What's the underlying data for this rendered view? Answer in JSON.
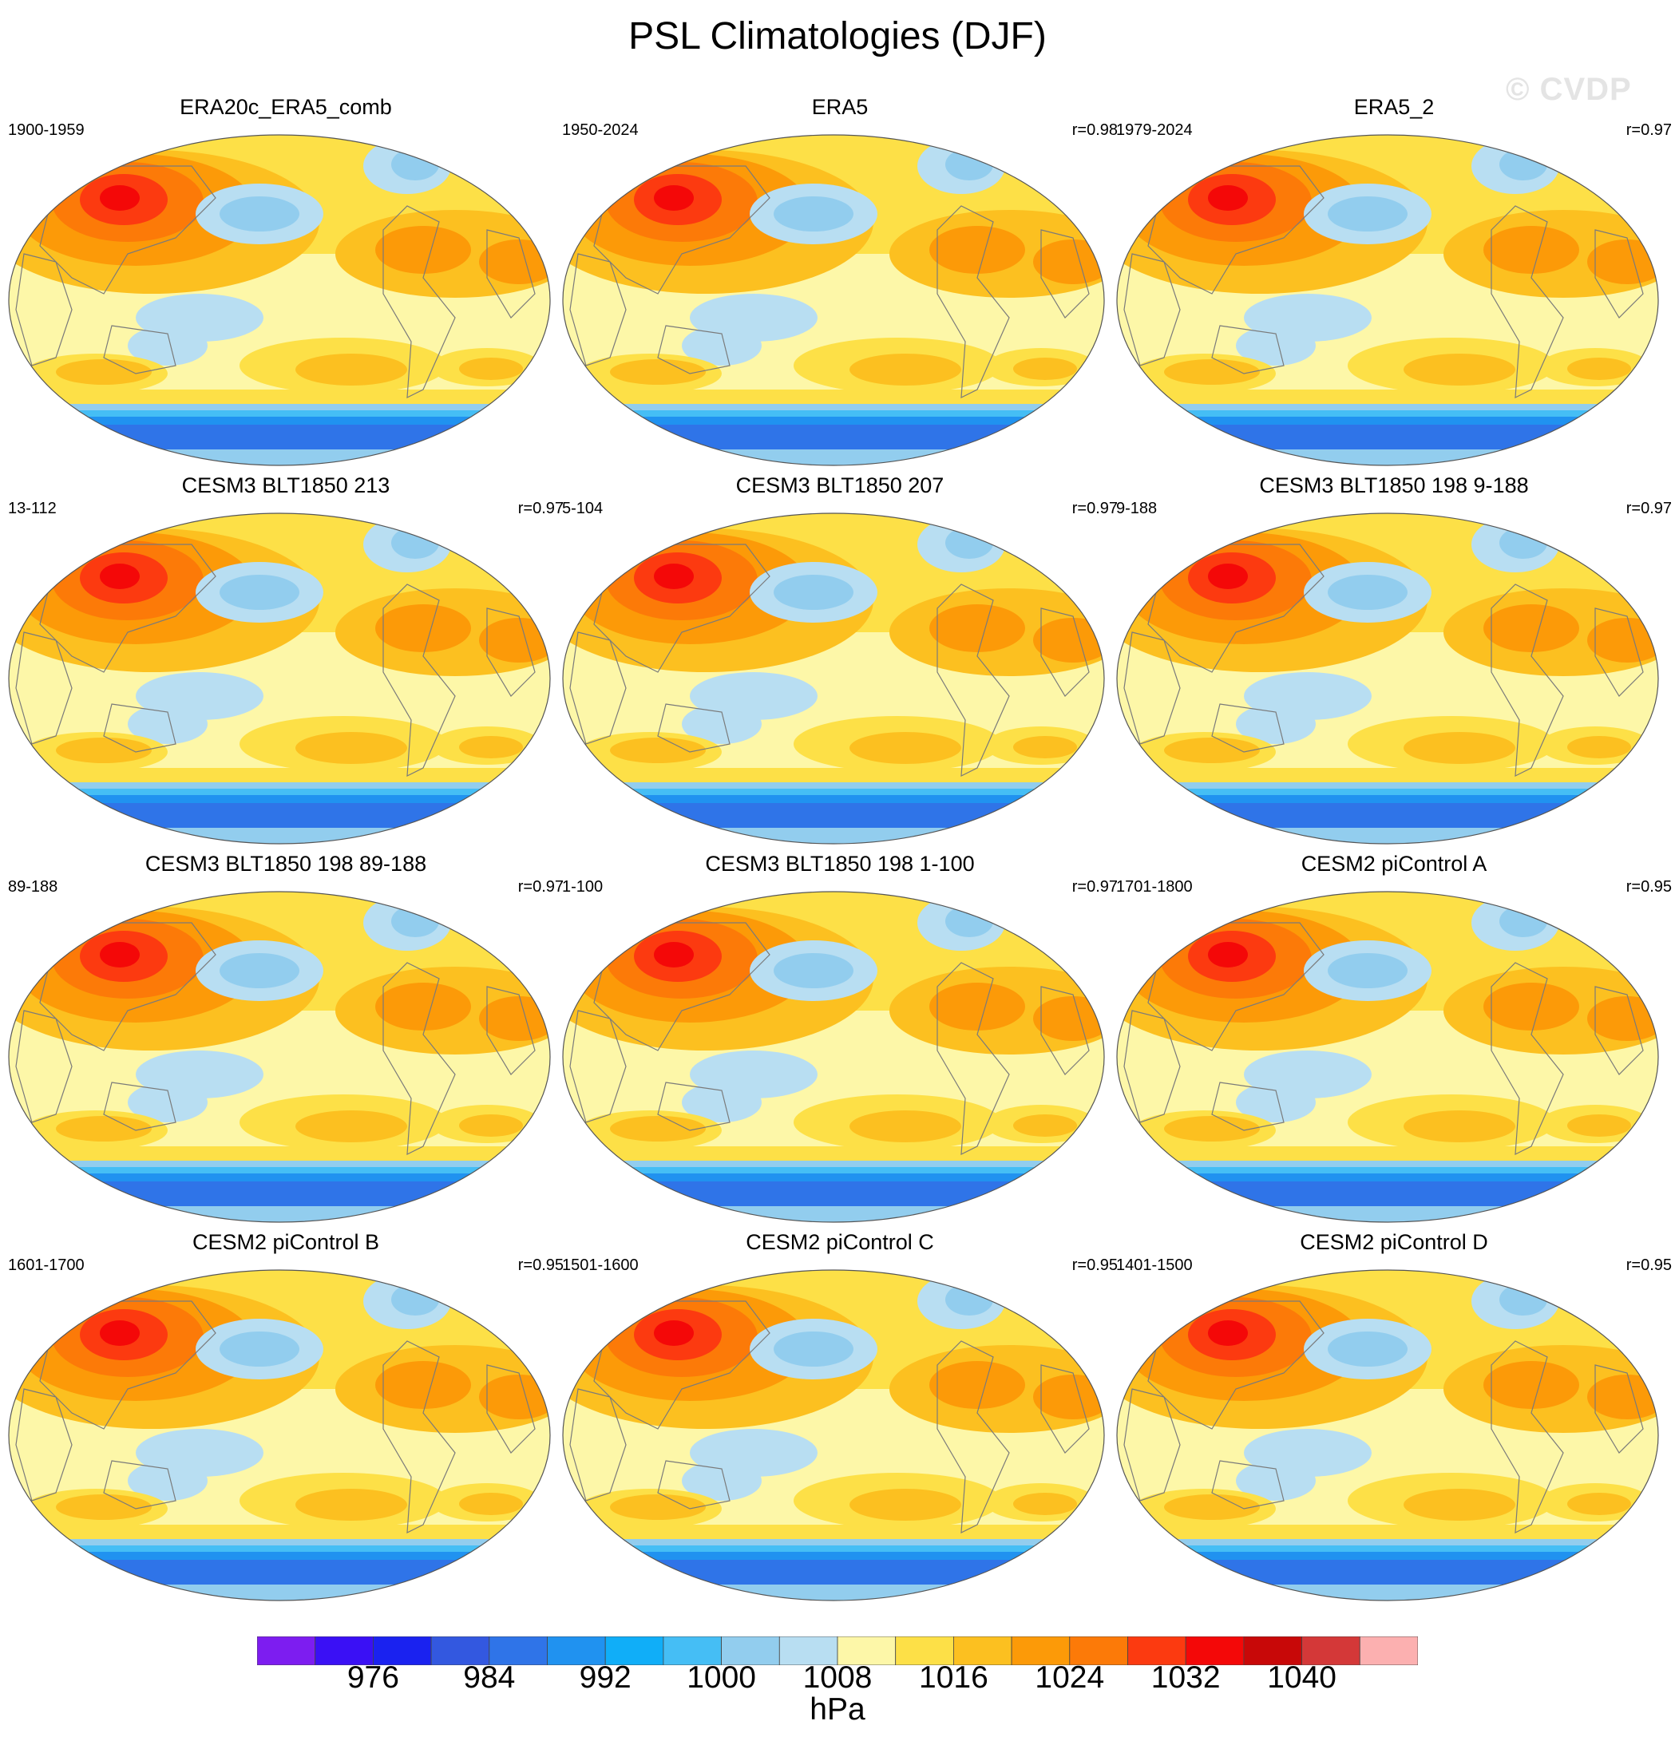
{
  "title": "PSL Climatologies (DJF)",
  "watermark": "© CVDP",
  "panels": [
    {
      "title": "ERA20c_ERA5_comb",
      "years": "1900-1959",
      "r": ""
    },
    {
      "title": "ERA5",
      "years": "1950-2024",
      "r": "r=0.98"
    },
    {
      "title": "ERA5_2",
      "years": "1979-2024",
      "r": "r=0.97"
    },
    {
      "title": "CESM3 BLT1850 213",
      "years": "13-112",
      "r": "r=0.97"
    },
    {
      "title": "CESM3 BLT1850 207",
      "years": "5-104",
      "r": "r=0.97"
    },
    {
      "title": "CESM3 BLT1850 198 9-188",
      "years": "9-188",
      "r": "r=0.97"
    },
    {
      "title": "CESM3 BLT1850 198 89-188",
      "years": "89-188",
      "r": "r=0.97"
    },
    {
      "title": "CESM3 BLT1850 198 1-100",
      "years": "1-100",
      "r": "r=0.97"
    },
    {
      "title": "CESM2 piControl A",
      "years": "1701-1800",
      "r": "r=0.95"
    },
    {
      "title": "CESM2 piControl B",
      "years": "1601-1700",
      "r": "r=0.95"
    },
    {
      "title": "CESM2 piControl C",
      "years": "1501-1600",
      "r": "r=0.95"
    },
    {
      "title": "CESM2 piControl D",
      "years": "1401-1500",
      "r": "r=0.95"
    }
  ],
  "colorbar": {
    "unit": "hPa",
    "ticks": [
      "976",
      "984",
      "992",
      "1000",
      "1008",
      "1016",
      "1024",
      "1032",
      "1040"
    ],
    "colors": [
      "#7d1df0",
      "#3a10f5",
      "#1a22f0",
      "#3358e0",
      "#2f74e8",
      "#2092f0",
      "#10aef8",
      "#45bef5",
      "#92cdee",
      "#b8def2",
      "#fdf7a8",
      "#fde047",
      "#fcc020",
      "#fc9a08",
      "#fc7a08",
      "#fc3a10",
      "#f40808",
      "#c80808",
      "#d43838",
      "#fcb0b0"
    ]
  }
}
